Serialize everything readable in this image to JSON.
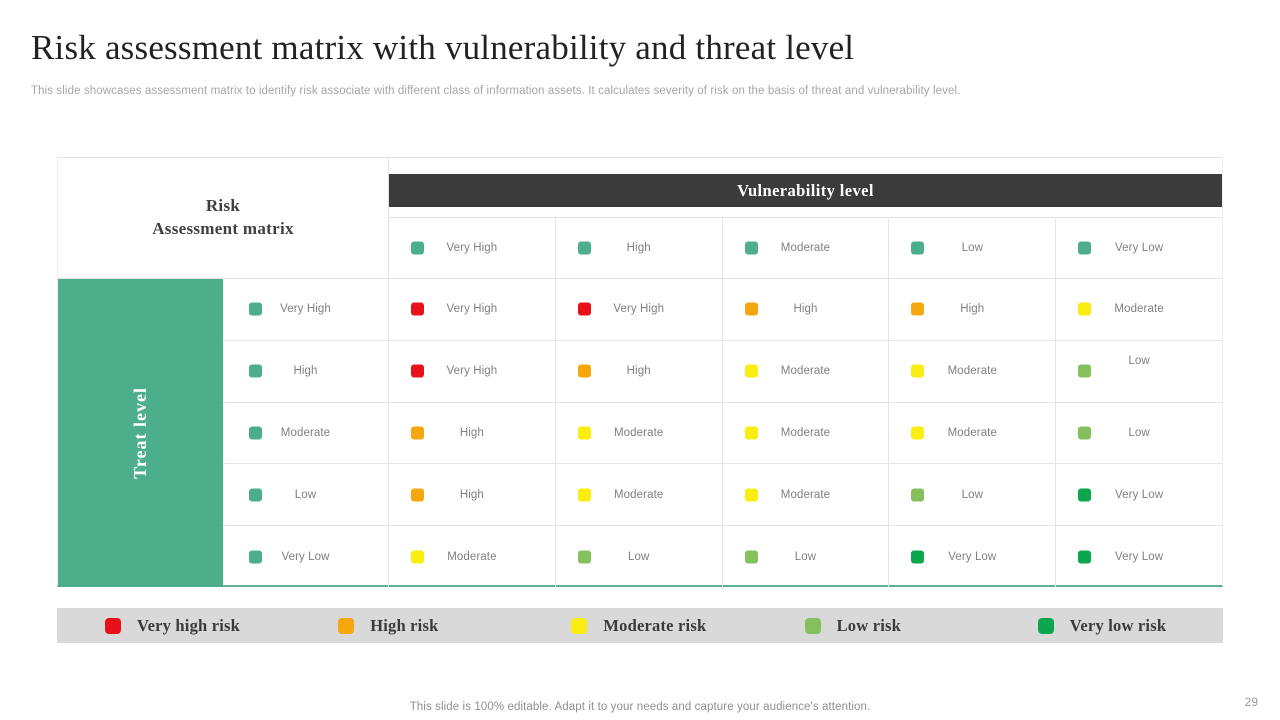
{
  "slide": {
    "title": "Risk assessment matrix with vulnerability and threat level",
    "subtitle": "This slide showcases assessment matrix to identify risk associate with different class of information assets. It calculates severity of risk on the basis of threat and vulnerability level.",
    "footer": "This slide is 100% editable. Adapt it to your needs and capture your audience's attention.",
    "page_number": "29"
  },
  "matrix": {
    "corner_line1": "Risk",
    "corner_line2": "Assessment matrix",
    "column_axis_label": "Vulnerability level",
    "row_axis_label": "Treat level",
    "column_headers": [
      "Very High",
      "High",
      "Moderate",
      "Low",
      "Very Low"
    ],
    "rows": [
      {
        "label": "Very High",
        "cells": [
          {
            "label": "Very High",
            "risk": "very_high"
          },
          {
            "label": "Very High",
            "risk": "very_high"
          },
          {
            "label": "High",
            "risk": "high"
          },
          {
            "label": "High",
            "risk": "high"
          },
          {
            "label": "Moderate",
            "risk": "moderate"
          }
        ]
      },
      {
        "label": "High",
        "cells": [
          {
            "label": "Very High",
            "risk": "very_high"
          },
          {
            "label": "High",
            "risk": "high"
          },
          {
            "label": "Moderate",
            "risk": "moderate"
          },
          {
            "label": "Moderate",
            "risk": "moderate"
          },
          {
            "label": "Low",
            "risk": "low",
            "raised": true
          }
        ]
      },
      {
        "label": "Moderate",
        "cells": [
          {
            "label": "High",
            "risk": "high"
          },
          {
            "label": "Moderate",
            "risk": "moderate"
          },
          {
            "label": "Moderate",
            "risk": "moderate"
          },
          {
            "label": "Moderate",
            "risk": "moderate"
          },
          {
            "label": "Low",
            "risk": "low"
          }
        ]
      },
      {
        "label": "Low",
        "cells": [
          {
            "label": "High",
            "risk": "high"
          },
          {
            "label": "Moderate",
            "risk": "moderate"
          },
          {
            "label": "Moderate",
            "risk": "moderate"
          },
          {
            "label": "Low",
            "risk": "low"
          },
          {
            "label": "Very Low",
            "risk": "very_low"
          }
        ]
      },
      {
        "label": "Very Low",
        "cells": [
          {
            "label": "Moderate",
            "risk": "moderate"
          },
          {
            "label": "Low",
            "risk": "low"
          },
          {
            "label": "Low",
            "risk": "low"
          },
          {
            "label": "Very Low",
            "risk": "very_low"
          },
          {
            "label": "Very Low",
            "risk": "very_low"
          }
        ]
      }
    ]
  },
  "legend": {
    "items": [
      {
        "label": "Very high risk",
        "risk": "very_high"
      },
      {
        "label": "High risk",
        "risk": "high"
      },
      {
        "label": "Moderate risk",
        "risk": "moderate"
      },
      {
        "label": "Low risk",
        "risk": "low"
      },
      {
        "label": "Very low risk",
        "risk": "very_low"
      }
    ]
  },
  "colors": {
    "very_high": "#E8111A",
    "high": "#F7A70E",
    "moderate": "#F9ED12",
    "low": "#84C05C",
    "very_low": "#0CA64F",
    "level_swatch": "#4DAE8C",
    "axis_bar_dark": "#3B3B3B",
    "threat_bar_teal": "#4DAE8C",
    "legend_background": "#D9D9D9"
  }
}
